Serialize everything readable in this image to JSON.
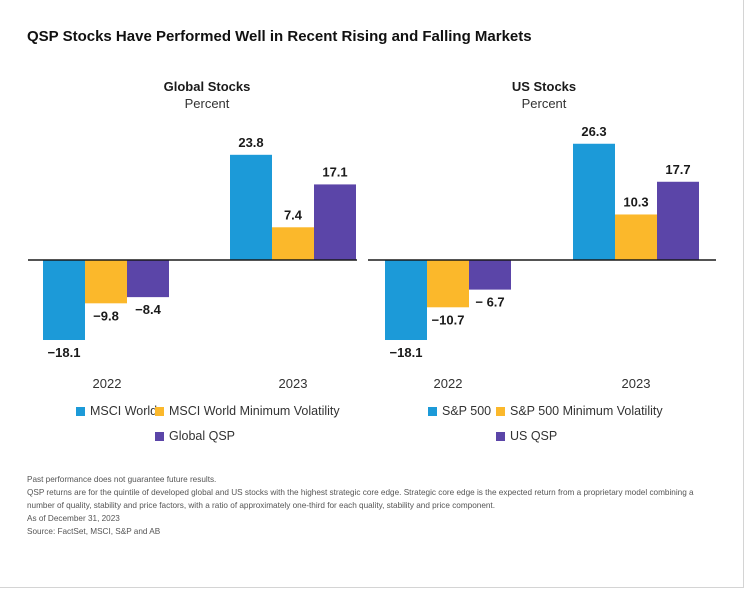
{
  "title": "QSP Stocks Have Performed Well in Recent Rising and Falling Markets",
  "colors": {
    "blue": "#1c9ad8",
    "yellow": "#fbb82b",
    "purple": "#5b45a8",
    "axis": "#1a1a1a"
  },
  "chart_data": [
    {
      "type": "bar",
      "title": "Global Stocks",
      "subtitle": "Percent",
      "categories": [
        "2022",
        "2023"
      ],
      "series": [
        {
          "name": "MSCI World",
          "values": [
            -18.1,
            23.8
          ],
          "labels": [
            "−18.1",
            "23.8"
          ],
          "color": "#1c9ad8"
        },
        {
          "name": "MSCI World Minimum Volatility",
          "values": [
            -9.8,
            7.4
          ],
          "labels": [
            "−9.8",
            "7.4"
          ],
          "color": "#fbb82b"
        },
        {
          "name": "Global QSP",
          "values": [
            -8.4,
            17.1
          ],
          "labels": [
            "−8.4",
            "17.1"
          ],
          "color": "#5b45a8"
        }
      ]
    },
    {
      "type": "bar",
      "title": "US Stocks",
      "subtitle": "Percent",
      "categories": [
        "2022",
        "2023"
      ],
      "series": [
        {
          "name": "S&P 500",
          "values": [
            -18.1,
            26.3
          ],
          "labels": [
            "−18.1",
            "26.3"
          ],
          "color": "#1c9ad8"
        },
        {
          "name": "S&P 500 Minimum Volatility",
          "values": [
            -10.7,
            10.3
          ],
          "labels": [
            "−10.7",
            "10.3"
          ],
          "color": "#fbb82b"
        },
        {
          "name": "US QSP",
          "values": [
            -6.7,
            17.7
          ],
          "labels": [
            "− 6.7",
            "17.7"
          ],
          "color": "#5b45a8"
        }
      ]
    }
  ],
  "notes": [
    "Past performance does not guarantee future results.",
    "QSP returns are for the quintile of developed global and US stocks with the highest strategic core edge. Strategic core edge is the expected return from a proprietary model combining a number of quality, stability and price factors, with a ratio of approximately one-third for each quality, stability and price component.",
    "As of December 31, 2023",
    "Source: FactSet, MSCI, S&P and AB"
  ]
}
